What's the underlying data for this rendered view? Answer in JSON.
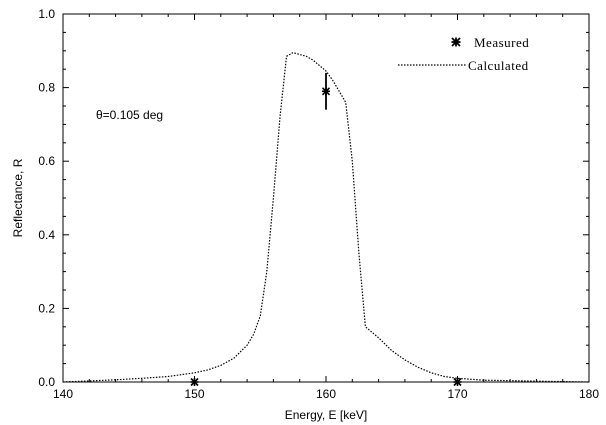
{
  "chart_data": {
    "type": "line",
    "xlabel": "Energy, E [keV]",
    "ylabel": "Reflectance, R",
    "xlim": [
      140,
      180
    ],
    "ylim": [
      0.0,
      1.0
    ],
    "x_ticks": [
      "140",
      "150",
      "160",
      "170",
      "180"
    ],
    "y_ticks": [
      "0.0",
      "0.2",
      "0.4",
      "0.6",
      "0.8",
      "1.0"
    ],
    "grid": false,
    "legend_position": "top-right",
    "annotation": "θ=0.105 deg",
    "series": [
      {
        "name": "Measured",
        "style": "markers",
        "marker": "asterisk",
        "points": [
          {
            "x": 150,
            "y": 0.0,
            "yerr": 0.0
          },
          {
            "x": 160,
            "y": 0.79,
            "yerr": 0.05
          },
          {
            "x": 170,
            "y": 0.0,
            "yerr": 0.0
          }
        ]
      },
      {
        "name": "Calculated",
        "style": "dotted-line",
        "x": [
          140,
          142,
          144,
          146,
          148,
          150,
          151,
          152,
          153,
          154,
          154.5,
          155,
          155.5,
          156,
          156.5,
          157,
          157.5,
          158,
          158.5,
          159,
          159.5,
          160,
          160.5,
          161,
          161.5,
          162,
          162.5,
          163,
          163.5,
          164,
          165,
          166,
          167,
          168,
          169,
          170,
          172,
          175,
          178,
          180
        ],
        "y": [
          0.0,
          0.003,
          0.006,
          0.01,
          0.015,
          0.025,
          0.033,
          0.045,
          0.065,
          0.1,
          0.13,
          0.18,
          0.3,
          0.5,
          0.72,
          0.885,
          0.895,
          0.89,
          0.885,
          0.875,
          0.86,
          0.845,
          0.82,
          0.79,
          0.76,
          0.6,
          0.35,
          0.15,
          0.135,
          0.12,
          0.085,
          0.06,
          0.04,
          0.025,
          0.015,
          0.01,
          0.005,
          0.003,
          0.001,
          0.0
        ]
      }
    ]
  }
}
